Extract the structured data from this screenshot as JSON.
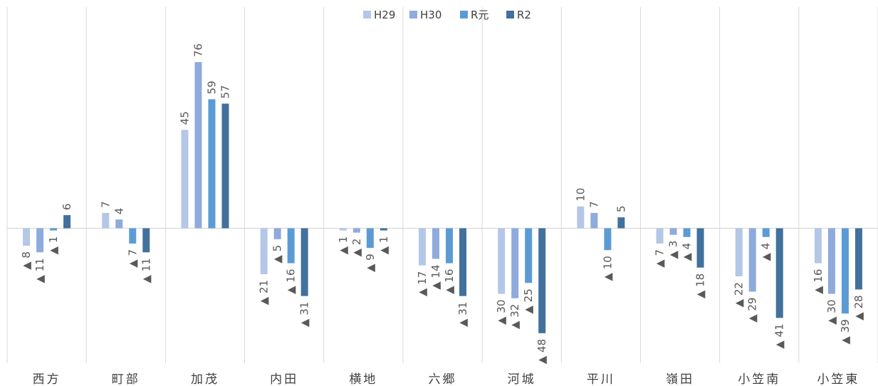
{
  "chart_data": {
    "type": "bar",
    "categories": [
      "西方",
      "町部",
      "加茂",
      "内田",
      "横地",
      "六郷",
      "河城",
      "平川",
      "嶺田",
      "小笠南",
      "小笠東"
    ],
    "series": [
      {
        "name": "H29",
        "color": "#b4c7e7",
        "values": [
          -8,
          7,
          45,
          -21,
          -1,
          -17,
          -30,
          10,
          -7,
          -22,
          -16
        ]
      },
      {
        "name": "H30",
        "color": "#8faadc",
        "values": [
          -11,
          4,
          76,
          -5,
          -2,
          -14,
          -32,
          7,
          -3,
          -29,
          -30
        ]
      },
      {
        "name": "R元",
        "color": "#5b9bd5",
        "values": [
          -1,
          -7,
          59,
          -16,
          -9,
          -16,
          -25,
          -10,
          -4,
          -4,
          -39
        ]
      },
      {
        "name": "R2",
        "color": "#41719c",
        "values": [
          6,
          -11,
          57,
          -31,
          -1,
          -31,
          -48,
          5,
          -18,
          -41,
          -28
        ]
      }
    ],
    "negative_prefix": "▲",
    "legend_position": "top",
    "gridlines": "vertical category separators",
    "ylim": [
      -63,
      97
    ]
  }
}
